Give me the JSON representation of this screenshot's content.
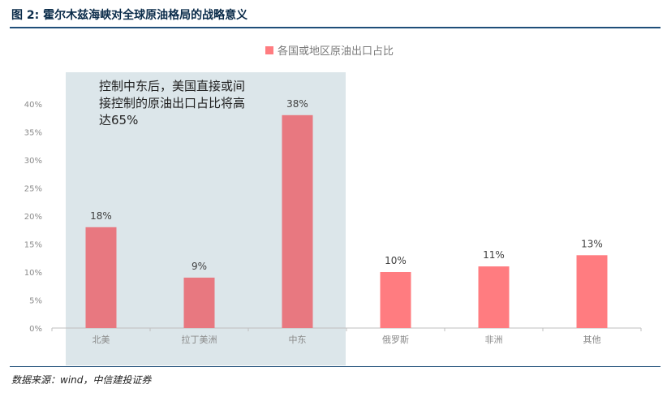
{
  "figure": {
    "title": "图 2: 霍尔木兹海峡对全球原油格局的战略意义",
    "source": "数据来源：wind，中信建投证券",
    "annotation": "控制中东后，美国直接或间接控制的原油出口占比将高达65%"
  },
  "colors": {
    "bar": "#ff7c80",
    "bar_in_highlight": "#e87880",
    "highlight_panel": "#dce6ea",
    "rule": "#1f4e79"
  },
  "chart_data": {
    "type": "bar",
    "categories": [
      "北美",
      "拉丁美洲",
      "中东",
      "俄罗斯",
      "非洲",
      "其他"
    ],
    "series": [
      {
        "name": "各国或地区原油出口占比",
        "values": [
          18,
          9,
          38,
          10,
          11,
          13
        ]
      }
    ],
    "data_labels": [
      "18%",
      "9%",
      "38%",
      "10%",
      "11%",
      "13%"
    ],
    "ylim": [
      0,
      40
    ],
    "yticks": [
      "0%",
      "5%",
      "10%",
      "15%",
      "20%",
      "25%",
      "30%",
      "35%",
      "40%"
    ],
    "highlighted_categories": [
      "北美",
      "拉丁美洲",
      "中东"
    ],
    "legend_position": "top-center",
    "grid": false
  }
}
